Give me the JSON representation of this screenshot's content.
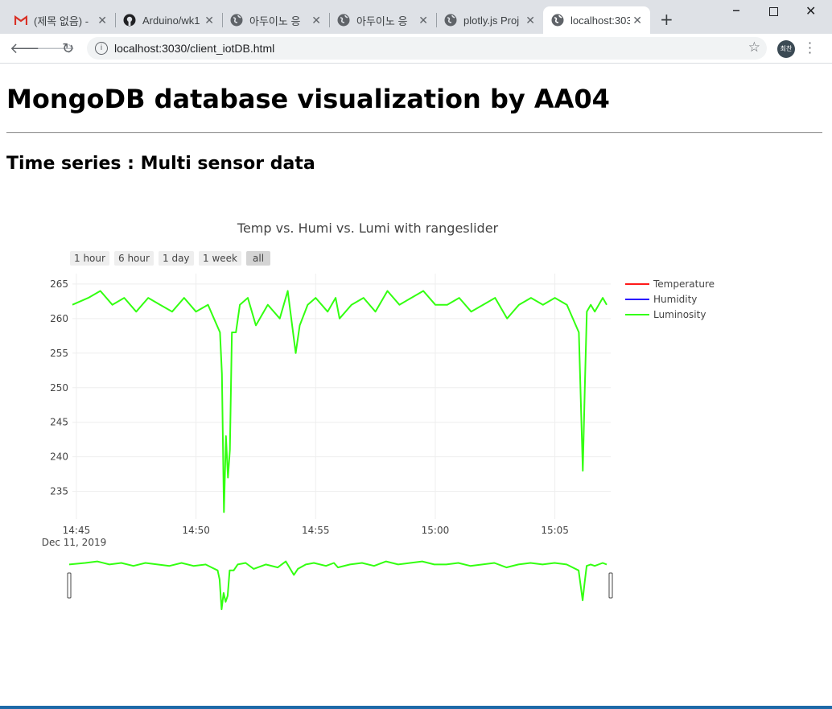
{
  "browser": {
    "tabs": [
      {
        "label": "(제목 없음) -",
        "icon": "gmail-icon"
      },
      {
        "label": "Arduino/wk1",
        "icon": "github-icon"
      },
      {
        "label": "아두이노 응",
        "icon": "globe-icon"
      },
      {
        "label": "아두이노 응",
        "icon": "globe-icon"
      },
      {
        "label": "plotly.js Proj",
        "icon": "globe-icon"
      },
      {
        "label": "localhost:303",
        "icon": "globe-icon"
      }
    ],
    "address": "localhost:3030/client_iotDB.html",
    "avatar_text": "최찬"
  },
  "page": {
    "title": "MongoDB database visualization by AA04",
    "subtitle": "Time series : Multi sensor data"
  },
  "chart_data": {
    "type": "line",
    "title": "Temp vs. Humi vs. Lumi with rangeslider",
    "range_buttons": [
      "1 hour",
      "6 hour",
      "1 day",
      "1 week",
      "all"
    ],
    "active_range_button": "all",
    "x_ticks": [
      "14:45",
      "14:50",
      "14:55",
      "15:00",
      "15:05"
    ],
    "x_date_label": "Dec 11, 2019",
    "y_ticks": [
      265,
      260,
      255,
      250,
      245,
      240,
      235
    ],
    "ylim": [
      231,
      266.5
    ],
    "xlim": [
      "14:44:50",
      "15:07:20"
    ],
    "grid": true,
    "legend_position": "right",
    "series": [
      {
        "name": "Temperature",
        "color": "#ff1a1a",
        "values": []
      },
      {
        "name": "Humidity",
        "color": "#2a1aff",
        "values": []
      },
      {
        "name": "Luminosity",
        "color": "#33ff11",
        "x": [
          "14:44:50",
          "14:45:30",
          "14:46:00",
          "14:46:30",
          "14:47:00",
          "14:47:30",
          "14:48:00",
          "14:48:30",
          "14:49:00",
          "14:49:30",
          "14:50:00",
          "14:50:30",
          "14:50:45",
          "14:51:00",
          "14:51:05",
          "14:51:10",
          "14:51:15",
          "14:51:20",
          "14:51:25",
          "14:51:30",
          "14:51:40",
          "14:51:50",
          "14:52:10",
          "14:52:30",
          "14:53:00",
          "14:53:30",
          "14:53:50",
          "14:54:10",
          "14:54:20",
          "14:54:40",
          "14:55:00",
          "14:55:30",
          "14:55:50",
          "14:56:00",
          "14:56:30",
          "14:57:00",
          "14:57:30",
          "14:58:00",
          "14:58:30",
          "14:59:00",
          "14:59:30",
          "15:00:00",
          "15:00:30",
          "15:01:00",
          "15:01:30",
          "15:02:00",
          "15:02:30",
          "15:03:00",
          "15:03:30",
          "15:04:00",
          "15:04:30",
          "15:05:00",
          "15:05:30",
          "15:06:00",
          "15:06:10",
          "15:06:15",
          "15:06:20",
          "15:06:30",
          "15:06:40",
          "15:07:00",
          "15:07:10"
        ],
        "values": [
          262,
          263,
          264,
          262,
          263,
          261,
          263,
          262,
          261,
          263,
          261,
          262,
          260,
          258,
          252,
          232,
          243,
          237,
          241,
          258,
          258,
          262,
          263,
          259,
          262,
          260,
          264,
          255,
          259,
          262,
          263,
          261,
          263,
          260,
          262,
          263,
          261,
          264,
          262,
          263,
          264,
          262,
          262,
          263,
          261,
          262,
          263,
          260,
          262,
          263,
          262,
          263,
          262,
          258,
          238,
          250,
          261,
          262,
          261,
          263,
          262
        ]
      }
    ]
  }
}
